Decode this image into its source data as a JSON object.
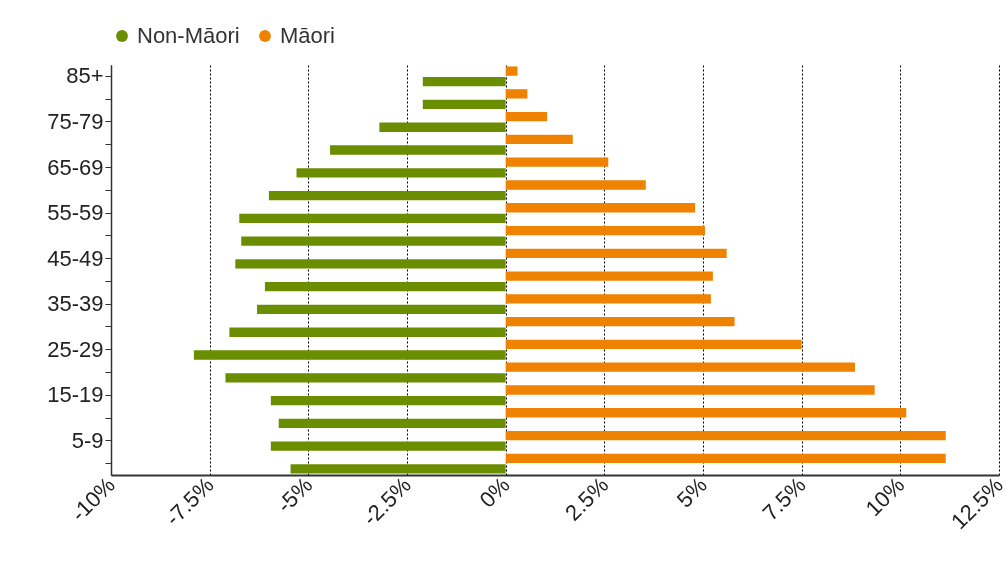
{
  "chart_data": {
    "type": "bar",
    "orientation": "horizontal",
    "categories": [
      "85+",
      null,
      "75-79",
      null,
      "65-69",
      null,
      "55-59",
      null,
      "45-49",
      null,
      "35-39",
      null,
      "25-29",
      null,
      "15-19",
      null,
      "5-9",
      null
    ],
    "series": [
      {
        "name": "Non-Māori",
        "color": "#6b8e00",
        "values": [
          -2.1,
          -2.1,
          -3.2,
          -4.45,
          -5.3,
          -6.0,
          -6.75,
          -6.7,
          -6.85,
          -6.1,
          -6.3,
          -7.0,
          -7.9,
          -7.1,
          -5.95,
          -5.75,
          -5.95,
          -5.45
        ]
      },
      {
        "name": "Māori",
        "color": "#ef8200",
        "values": [
          0.3,
          0.55,
          1.05,
          1.7,
          2.6,
          3.55,
          4.8,
          5.05,
          5.6,
          5.25,
          5.2,
          5.8,
          7.5,
          8.85,
          9.35,
          10.15,
          11.15,
          11.15
        ]
      }
    ],
    "xlim": [
      -10,
      12.5
    ],
    "xticks": [
      {
        "value": -10,
        "label": "-10%"
      },
      {
        "value": -7.5,
        "label": "-7.5%"
      },
      {
        "value": -5,
        "label": "-5%"
      },
      {
        "value": -2.5,
        "label": "-2.5%"
      },
      {
        "value": 0,
        "label": "0%"
      },
      {
        "value": 2.5,
        "label": "2.5%"
      },
      {
        "value": 5,
        "label": "5%"
      },
      {
        "value": 7.5,
        "label": "7.5%"
      },
      {
        "value": 10,
        "label": "10%"
      },
      {
        "value": 12.5,
        "label": "12.5%"
      }
    ],
    "grid": "x",
    "legend": "top"
  }
}
